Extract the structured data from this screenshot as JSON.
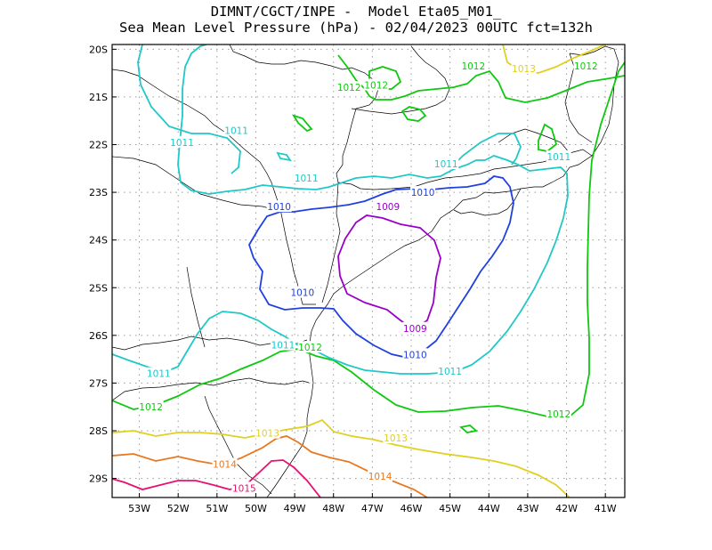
{
  "title": {
    "line1": "DIMNT/CGCT/INPE -  Model Eta05_M01_",
    "line2": "Sea Mean Level Pressure (hPa) - 02/04/2023 00UTC fct=132h"
  },
  "chart_data": {
    "type": "map",
    "variable": "Sea Mean Level Pressure (hPa)",
    "lon_range": [
      -53.7,
      -40.5
    ],
    "lat_range": [
      -29.4,
      -19.9
    ],
    "x_ticks": [
      "53W",
      "52W",
      "51W",
      "50W",
      "49W",
      "48W",
      "47W",
      "46W",
      "45W",
      "44W",
      "43W",
      "42W",
      "41W"
    ],
    "y_ticks": [
      "20S",
      "21S",
      "22S",
      "23S",
      "24S",
      "25S",
      "26S",
      "27S",
      "28S",
      "29S"
    ],
    "colors": {
      "1009": "#9a00c8",
      "1010": "#2040e0",
      "1011": "#20c8c8",
      "1012": "#10c810",
      "1013": "#e0d020",
      "1014": "#e87820",
      "1015": "#e8106e",
      "coast": "#000000",
      "grid": "#9a9a9a"
    },
    "contour_labels": [
      {
        "text": "1009",
        "lon": -46.6,
        "lat": -23.3,
        "level": "1009"
      },
      {
        "text": "1009",
        "lon": -45.9,
        "lat": -25.85,
        "level": "1009"
      },
      {
        "text": "1010",
        "lon": -49.4,
        "lat": -23.3,
        "level": "1010"
      },
      {
        "text": "1010",
        "lon": -45.7,
        "lat": -23.0,
        "level": "1010"
      },
      {
        "text": "1010",
        "lon": -48.8,
        "lat": -25.1,
        "level": "1010"
      },
      {
        "text": "1010",
        "lon": -45.9,
        "lat": -26.4,
        "level": "1010"
      },
      {
        "text": "1011",
        "lon": -51.9,
        "lat": -21.95,
        "level": "1011"
      },
      {
        "text": "1011",
        "lon": -50.5,
        "lat": -21.7,
        "level": "1011"
      },
      {
        "text": "1011",
        "lon": -48.7,
        "lat": -22.7,
        "level": "1011"
      },
      {
        "text": "1011",
        "lon": -45.1,
        "lat": -22.4,
        "level": "1011"
      },
      {
        "text": "1011",
        "lon": -42.2,
        "lat": -22.25,
        "level": "1011"
      },
      {
        "text": "1011",
        "lon": -49.3,
        "lat": -26.2,
        "level": "1011"
      },
      {
        "text": "1011",
        "lon": -45.0,
        "lat": -26.75,
        "level": "1011"
      },
      {
        "text": "1011",
        "lon": -52.5,
        "lat": -26.8,
        "level": "1011"
      },
      {
        "text": "1012",
        "lon": -47.6,
        "lat": -20.8,
        "level": "1012"
      },
      {
        "text": "1012",
        "lon": -46.9,
        "lat": -20.75,
        "level": "1012"
      },
      {
        "text": "1012",
        "lon": -44.4,
        "lat": -20.35,
        "level": "1012"
      },
      {
        "text": "1012",
        "lon": -41.5,
        "lat": -20.35,
        "level": "1012"
      },
      {
        "text": "1012",
        "lon": -48.6,
        "lat": -26.25,
        "level": "1012"
      },
      {
        "text": "1012",
        "lon": -52.7,
        "lat": -27.5,
        "level": "1012"
      },
      {
        "text": "1012",
        "lon": -42.2,
        "lat": -27.65,
        "level": "1012"
      },
      {
        "text": "1013",
        "lon": -43.1,
        "lat": -20.4,
        "level": "1013"
      },
      {
        "text": "1013",
        "lon": -49.7,
        "lat": -28.05,
        "level": "1013"
      },
      {
        "text": "1013",
        "lon": -46.4,
        "lat": -28.15,
        "level": "1013"
      },
      {
        "text": "1014",
        "lon": -50.8,
        "lat": -28.7,
        "level": "1014"
      },
      {
        "text": "1014",
        "lon": -46.8,
        "lat": -28.95,
        "level": "1014"
      },
      {
        "text": "1015",
        "lon": -50.3,
        "lat": -29.2,
        "level": "1015"
      }
    ]
  }
}
